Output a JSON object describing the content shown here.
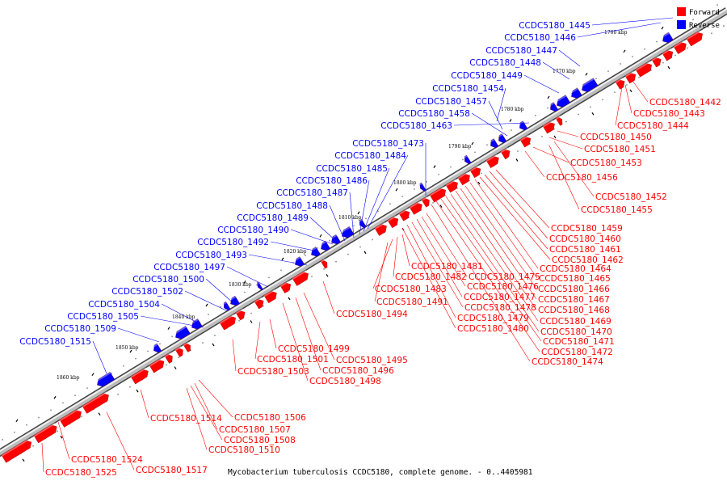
{
  "caption": "Mycobacterium tuberculosis CCDC5180, complete genome. - 0..4405981",
  "legend": [
    {
      "label": "Forward",
      "color": "#ff0000"
    },
    {
      "label": "Reverse",
      "color": "#0000ff"
    }
  ],
  "colors": {
    "forward": "#ff0000",
    "reverse": "#0000ff",
    "backbone": "#808080"
  },
  "ticks": [
    "1760 kbp",
    "1770 kbp",
    "1780 kbp",
    "1790 kbp",
    "1800 kbp",
    "1810 kbp",
    "1820 kbp",
    "1830 kbp",
    "1840 kbp",
    "1850 kbp",
    "1860 kbp"
  ],
  "reverse_labels": [
    "CCDC5180_1445",
    "CCDC5180_1446",
    "CCDC5180_1447",
    "CCDC5180_1448",
    "CCDC5180_1449",
    "CCDC5180_1454",
    "CCDC5180_1457",
    "CCDC5180_1458",
    "CCDC5180_1463",
    "CCDC5180_1473",
    "CCDC5180_1484",
    "CCDC5180_1485",
    "CCDC5180_1486",
    "CCDC5180_1487",
    "CCDC5180_1488",
    "CCDC5180_1489",
    "CCDC5180_1490",
    "CCDC5180_1492",
    "CCDC5180_1493",
    "CCDC5180_1497",
    "CCDC5180_1500",
    "CCDC5180_1502",
    "CCDC5180_1504",
    "CCDC5180_1505",
    "CCDC5180_1509",
    "CCDC5180_1515"
  ],
  "forward_labels_right": [
    "CCDC5180_1442",
    "CCDC5180_1443",
    "CCDC5180_1444",
    "CCDC5180_1450",
    "CCDC5180_1451",
    "CCDC5180_1453",
    "CCDC5180_1456",
    "CCDC5180_1452",
    "CCDC5180_1455",
    "CCDC5180_1459",
    "CCDC5180_1460",
    "CCDC5180_1461",
    "CCDC5180_1462",
    "CCDC5180_1464",
    "CCDC5180_1465",
    "CCDC5180_1466",
    "CCDC5180_1467",
    "CCDC5180_1468",
    "CCDC5180_1469",
    "CCDC5180_1470",
    "CCDC5180_1471",
    "CCDC5180_1472",
    "CCDC5180_1474"
  ],
  "forward_labels_mid": [
    "CCDC5180_1481",
    "CCDC5180_1482",
    "CCDC5180_1475",
    "CCDC5180_1483",
    "CCDC5180_1476",
    "CCDC5180_1477",
    "CCDC5180_1478",
    "CCDC5180_1479",
    "CCDC5180_1480",
    "CCDC5180_1491",
    "CCDC5180_1494"
  ],
  "forward_labels_low": [
    "CCDC5180_1499",
    "CCDC5180_1501",
    "CCDC5180_1495",
    "CCDC5180_1496",
    "CCDC5180_1503",
    "CCDC5180_1498",
    "CCDC5180_1506",
    "CCDC5180_1514",
    "CCDC5180_1507",
    "CCDC5180_1508",
    "CCDC5180_1510",
    "CCDC5180_1524",
    "CCDC5180_1525",
    "CCDC5180_1517"
  ]
}
